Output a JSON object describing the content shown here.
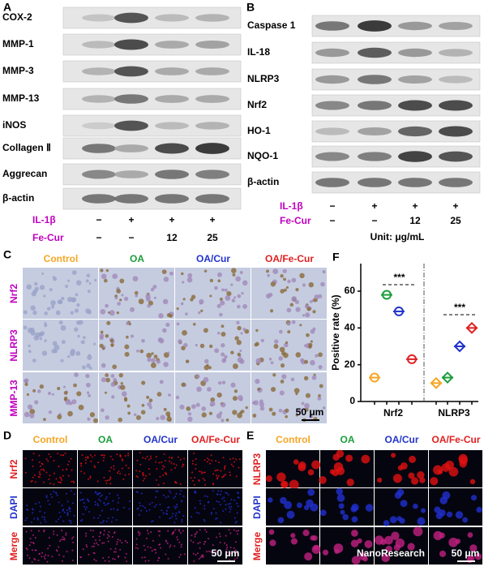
{
  "panels": {
    "A": {
      "label": "A",
      "rows": [
        "COX-2",
        "MMP-1",
        "MMP-3",
        "MMP-13",
        "iNOS",
        "Collagen Ⅱ",
        "Aggrecan",
        "β-actin"
      ],
      "conditions": [
        {
          "label": "IL-1β",
          "values": [
            "−",
            "+",
            "+",
            "+"
          ]
        },
        {
          "label": "Fe-Cur",
          "values": [
            "−",
            "−",
            "12",
            "25"
          ]
        }
      ]
    },
    "B": {
      "label": "B",
      "rows": [
        "Caspase 1",
        "IL-18",
        "NLRP3",
        "Nrf2",
        "HO-1",
        "NQO-1",
        "β-actin"
      ],
      "conditions": [
        {
          "label": "IL-1β",
          "values": [
            "−",
            "+",
            "+",
            "+"
          ]
        },
        {
          "label": "Fe-Cur",
          "values": [
            "−",
            "−",
            "12",
            "25"
          ]
        }
      ],
      "unit": "Unit: μg/mL"
    },
    "C": {
      "label": "C",
      "columns": [
        "Control",
        "OA",
        "OA/Cur",
        "OA/Fe-Cur"
      ],
      "rows": [
        "Nrf2",
        "NLRP3",
        "MMP-13"
      ],
      "scale_bar": "50 μm"
    },
    "D": {
      "label": "D",
      "columns": [
        "Control",
        "OA",
        "OA/Cur",
        "OA/Fe-Cur"
      ],
      "rows": [
        "Nrf2",
        "DAPI",
        "Merge"
      ],
      "scale_bar": "50 μm"
    },
    "E": {
      "label": "E",
      "columns": [
        "Control",
        "OA",
        "OA/Cur",
        "OA/Fe-Cur"
      ],
      "rows": [
        "NLRP3",
        "DAPI",
        "Merge"
      ],
      "scale_bar": "50 μm"
    }
  },
  "chart_data": {
    "type": "dot",
    "label": "F",
    "ylabel": "Positive rate (%)",
    "categories": [
      "Nrf2",
      "NLRP3"
    ],
    "series": [
      {
        "name": "Control",
        "color": "#f5a623",
        "values": [
          13,
          10
        ]
      },
      {
        "name": "OA",
        "color": "#1a9e3a",
        "values": [
          58,
          13
        ]
      },
      {
        "name": "OA/Cur",
        "color": "#2233cc",
        "values": [
          49,
          30
        ]
      },
      {
        "name": "OA/Fe-Cur",
        "color": "#e02020",
        "values": [
          23,
          40
        ]
      }
    ],
    "ylim": [
      0,
      75
    ],
    "yticks": [
      0,
      20,
      40,
      60
    ],
    "annotations": [
      "***",
      "***"
    ]
  },
  "watermark": "NanoResearch"
}
